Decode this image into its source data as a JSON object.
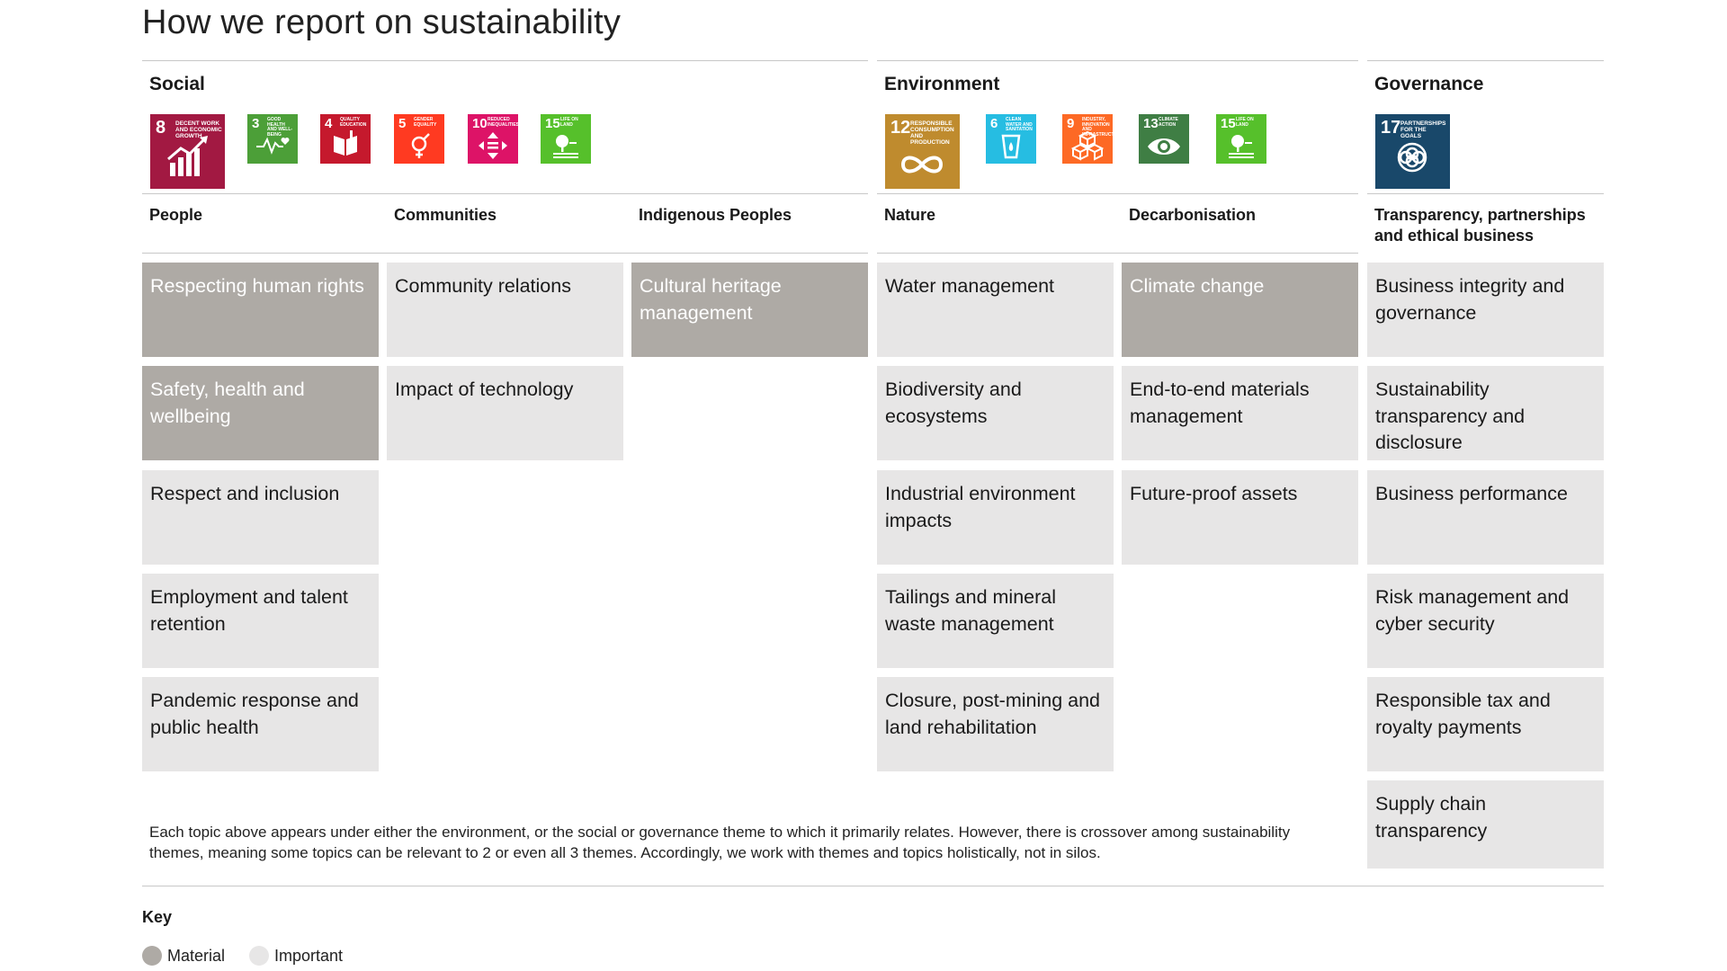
{
  "title": "How we report on sustainability",
  "themes": {
    "social": {
      "title": "Social",
      "sdgs": [
        {
          "num": "8",
          "caption": "Decent work and economic growth",
          "color": "#a21942",
          "icon": "growth-chart-icon"
        },
        {
          "num": "3",
          "caption": "Good health and well-being",
          "color": "#4c9f38",
          "icon": "heartbeat-icon"
        },
        {
          "num": "4",
          "caption": "Quality education",
          "color": "#c5192d",
          "icon": "book-icon"
        },
        {
          "num": "5",
          "caption": "Gender equality",
          "color": "#ff3a21",
          "icon": "gender-icon"
        },
        {
          "num": "10",
          "caption": "Reduced inequalities",
          "color": "#dd1367",
          "icon": "equality-arrows-icon"
        },
        {
          "num": "15",
          "caption": "Life on land",
          "color": "#56c02b",
          "icon": "tree-icon"
        }
      ],
      "subthemes": [
        "People",
        "Communities",
        "Indigenous Peoples"
      ]
    },
    "environment": {
      "title": "Environment",
      "sdgs": [
        {
          "num": "12",
          "caption": "Responsible consumption and production",
          "color": "#bf8b2e",
          "icon": "infinity-icon"
        },
        {
          "num": "6",
          "caption": "Clean water and sanitation",
          "color": "#26bde2",
          "icon": "water-glass-icon"
        },
        {
          "num": "9",
          "caption": "Industry, innovation and infrastructure",
          "color": "#fd6925",
          "icon": "cubes-icon"
        },
        {
          "num": "13",
          "caption": "Climate action",
          "color": "#3f7e44",
          "icon": "eye-globe-icon"
        },
        {
          "num": "15",
          "caption": "Life on land",
          "color": "#56c02b",
          "icon": "tree-icon"
        }
      ],
      "subthemes": [
        "Nature",
        "Decarbonisation"
      ]
    },
    "governance": {
      "title": "Governance",
      "sdgs": [
        {
          "num": "17",
          "caption": "Partnerships for the goals",
          "color": "#19486a",
          "icon": "partnership-rings-icon"
        }
      ],
      "subthemes": [
        "Transparency, partnerships and ethical business"
      ]
    }
  },
  "topics": {
    "people": [
      {
        "label": "Respecting human rights",
        "level": "material"
      },
      {
        "label": "Safety, health and wellbeing",
        "level": "material"
      },
      {
        "label": "Respect and inclusion",
        "level": "important"
      },
      {
        "label": "Employment and talent retention",
        "level": "important"
      },
      {
        "label": "Pandemic response and public health",
        "level": "important"
      }
    ],
    "communities": [
      {
        "label": "Community relations",
        "level": "important"
      },
      {
        "label": "Impact of technology",
        "level": "important"
      }
    ],
    "indigenous": [
      {
        "label": "Cultural heritage management",
        "level": "material"
      }
    ],
    "nature": [
      {
        "label": "Water management",
        "level": "important"
      },
      {
        "label": "Biodiversity and ecosystems",
        "level": "important"
      },
      {
        "label": "Industrial environment impacts",
        "level": "important"
      },
      {
        "label": "Tailings and mineral waste management",
        "level": "important"
      },
      {
        "label": "Closure, post-mining and land rehabilitation",
        "level": "important"
      }
    ],
    "decarbonisation": [
      {
        "label": "Climate change",
        "level": "material"
      },
      {
        "label": "End-to-end materials management",
        "level": "important"
      },
      {
        "label": "Future-proof assets",
        "level": "important"
      }
    ],
    "governance": [
      {
        "label": "Business integrity and governance",
        "level": "important"
      },
      {
        "label": "Sustainability transparency and disclosure",
        "level": "important"
      },
      {
        "label": "Business performance",
        "level": "important"
      },
      {
        "label": "Risk management and cyber security",
        "level": "important"
      },
      {
        "label": "Responsible tax and royalty payments",
        "level": "important"
      },
      {
        "label": "Supply chain transparency",
        "level": "important"
      }
    ]
  },
  "footnote": "Each topic above appears under either the environment, or the social or governance theme to which it primarily relates. However, there is crossover among sustainability themes, meaning some topics can be relevant to 2 or even all 3 themes. Accordingly, we work with themes and topics holistically, not in silos.",
  "key": {
    "title": "Key",
    "material": {
      "label": "Material",
      "color": "#aeaaa5"
    },
    "important": {
      "label": "Important",
      "color": "#e7e6e6"
    }
  }
}
